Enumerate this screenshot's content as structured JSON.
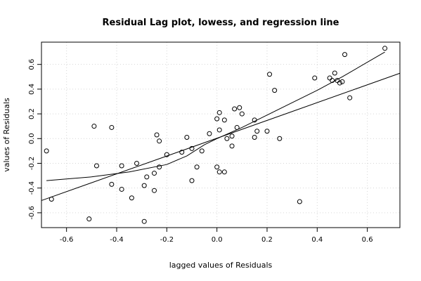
{
  "chart_data": {
    "type": "scatter",
    "title": "Residual Lag plot, lowess, and regression line",
    "xlabel": "lagged values of Residuals",
    "ylabel": "values of Residuals",
    "xlim": [
      -0.7,
      0.73
    ],
    "ylim": [
      -0.72,
      0.78
    ],
    "x_ticks": [
      -0.6,
      -0.4,
      -0.2,
      0.0,
      0.2,
      0.4,
      0.6
    ],
    "x_tick_labels": [
      "-0.6",
      "-0.4",
      "-0.2",
      "0.0",
      "0.2",
      "0.4",
      "0.6"
    ],
    "y_ticks": [
      -0.6,
      -0.4,
      -0.2,
      0.0,
      0.2,
      0.4,
      0.6
    ],
    "y_tick_labels": [
      "-0.6",
      "-0.4",
      "-0.2",
      "0.0",
      "0.2",
      "0.4",
      "0.6"
    ],
    "grid": true,
    "points": [
      [
        -0.68,
        -0.1
      ],
      [
        -0.66,
        -0.49
      ],
      [
        -0.51,
        -0.65
      ],
      [
        -0.49,
        0.1
      ],
      [
        -0.48,
        -0.22
      ],
      [
        -0.42,
        -0.37
      ],
      [
        -0.42,
        0.09
      ],
      [
        -0.38,
        -0.22
      ],
      [
        -0.38,
        -0.41
      ],
      [
        -0.34,
        -0.48
      ],
      [
        -0.32,
        -0.2
      ],
      [
        -0.29,
        -0.38
      ],
      [
        -0.29,
        -0.67
      ],
      [
        -0.28,
        -0.31
      ],
      [
        -0.25,
        -0.28
      ],
      [
        -0.25,
        -0.42
      ],
      [
        -0.24,
        0.03
      ],
      [
        -0.23,
        -0.02
      ],
      [
        -0.23,
        -0.23
      ],
      [
        -0.2,
        -0.13
      ],
      [
        -0.14,
        -0.11
      ],
      [
        -0.12,
        0.01
      ],
      [
        -0.1,
        -0.08
      ],
      [
        -0.1,
        -0.34
      ],
      [
        -0.08,
        -0.23
      ],
      [
        -0.06,
        -0.1
      ],
      [
        -0.03,
        0.04
      ],
      [
        0.0,
        -0.23
      ],
      [
        0.0,
        0.16
      ],
      [
        0.01,
        -0.27
      ],
      [
        0.01,
        0.07
      ],
      [
        0.01,
        0.21
      ],
      [
        0.03,
        0.15
      ],
      [
        0.03,
        -0.27
      ],
      [
        0.04,
        0.0
      ],
      [
        0.06,
        -0.06
      ],
      [
        0.06,
        0.02
      ],
      [
        0.07,
        0.24
      ],
      [
        0.08,
        0.09
      ],
      [
        0.09,
        0.25
      ],
      [
        0.1,
        0.2
      ],
      [
        0.15,
        0.01
      ],
      [
        0.15,
        0.15
      ],
      [
        0.16,
        0.06
      ],
      [
        0.2,
        0.06
      ],
      [
        0.21,
        0.52
      ],
      [
        0.23,
        0.39
      ],
      [
        0.25,
        0.0
      ],
      [
        0.33,
        -0.51
      ],
      [
        0.39,
        0.49
      ],
      [
        0.45,
        0.49
      ],
      [
        0.46,
        0.47
      ],
      [
        0.47,
        0.53
      ],
      [
        0.48,
        0.47
      ],
      [
        0.49,
        0.45
      ],
      [
        0.5,
        0.46
      ],
      [
        0.51,
        0.68
      ],
      [
        0.53,
        0.33
      ],
      [
        0.67,
        0.73
      ]
    ],
    "regression_line": {
      "intercept": 0.003,
      "slope": 0.72
    },
    "lowess_line": [
      [
        -0.68,
        -0.34
      ],
      [
        -0.5,
        -0.31
      ],
      [
        -0.35,
        -0.27
      ],
      [
        -0.2,
        -0.21
      ],
      [
        -0.12,
        -0.14
      ],
      [
        -0.05,
        -0.05
      ],
      [
        0.0,
        0.0
      ],
      [
        0.1,
        0.09
      ],
      [
        0.2,
        0.19
      ],
      [
        0.3,
        0.29
      ],
      [
        0.4,
        0.39
      ],
      [
        0.5,
        0.5
      ],
      [
        0.67,
        0.7
      ]
    ]
  }
}
